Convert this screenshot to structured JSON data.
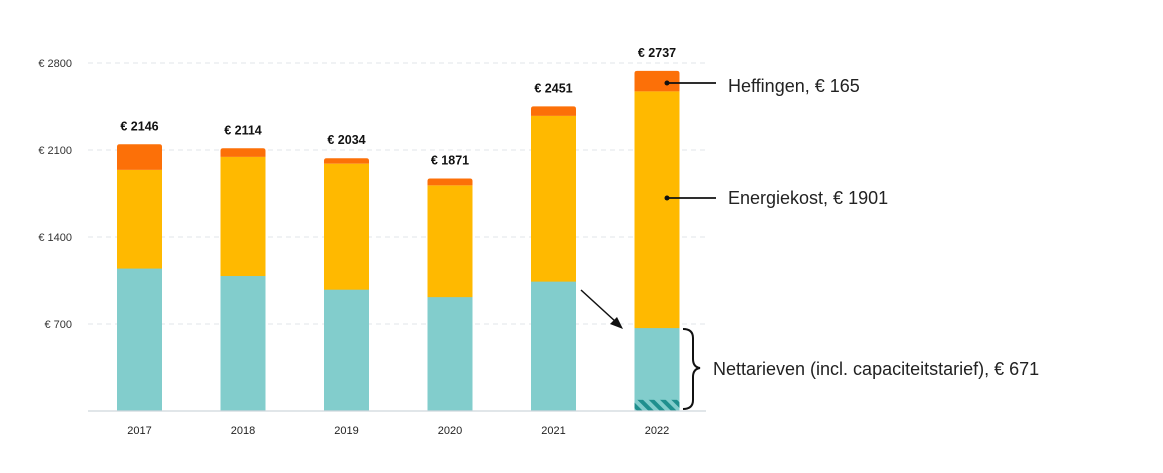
{
  "chart_data": {
    "type": "bar",
    "stacked": true,
    "categories": [
      "2017",
      "2018",
      "2019",
      "2020",
      "2021",
      "2022"
    ],
    "series": [
      {
        "key": "nettarieven",
        "color": "#82cdcc",
        "values": [
          1150,
          1090,
          980,
          920,
          1045,
          671
        ]
      },
      {
        "key": "energiekost",
        "color": "#ffb900",
        "values": [
          790,
          955,
          1010,
          895,
          1330,
          1901
        ]
      },
      {
        "key": "heffingen",
        "color": "#fc7008",
        "values": [
          206,
          69,
          44,
          56,
          76,
          165
        ]
      }
    ],
    "totals": [
      "€ 2146",
      "€ 2114",
      "€ 2034",
      "€ 1871",
      "€ 2451",
      "€ 2737"
    ],
    "ylim": [
      0,
      2800
    ],
    "yticks": [
      {
        "value": 700,
        "label": "€ 700"
      },
      {
        "value": 1400,
        "label": "€ 1400"
      },
      {
        "value": 2100,
        "label": "€ 2100"
      },
      {
        "value": 2800,
        "label": "€ 2800"
      }
    ],
    "grid": true,
    "hatched_segment": {
      "category": "2022",
      "series": "nettarieven",
      "color": "#1f8f8e",
      "value": 90
    },
    "annotations": {
      "heffingen": "Heffingen, € 165",
      "energiekost": "Energiekost, € 1901",
      "nettarieven": "Nettarieven (incl. capaciteitstarief), € 671"
    }
  }
}
